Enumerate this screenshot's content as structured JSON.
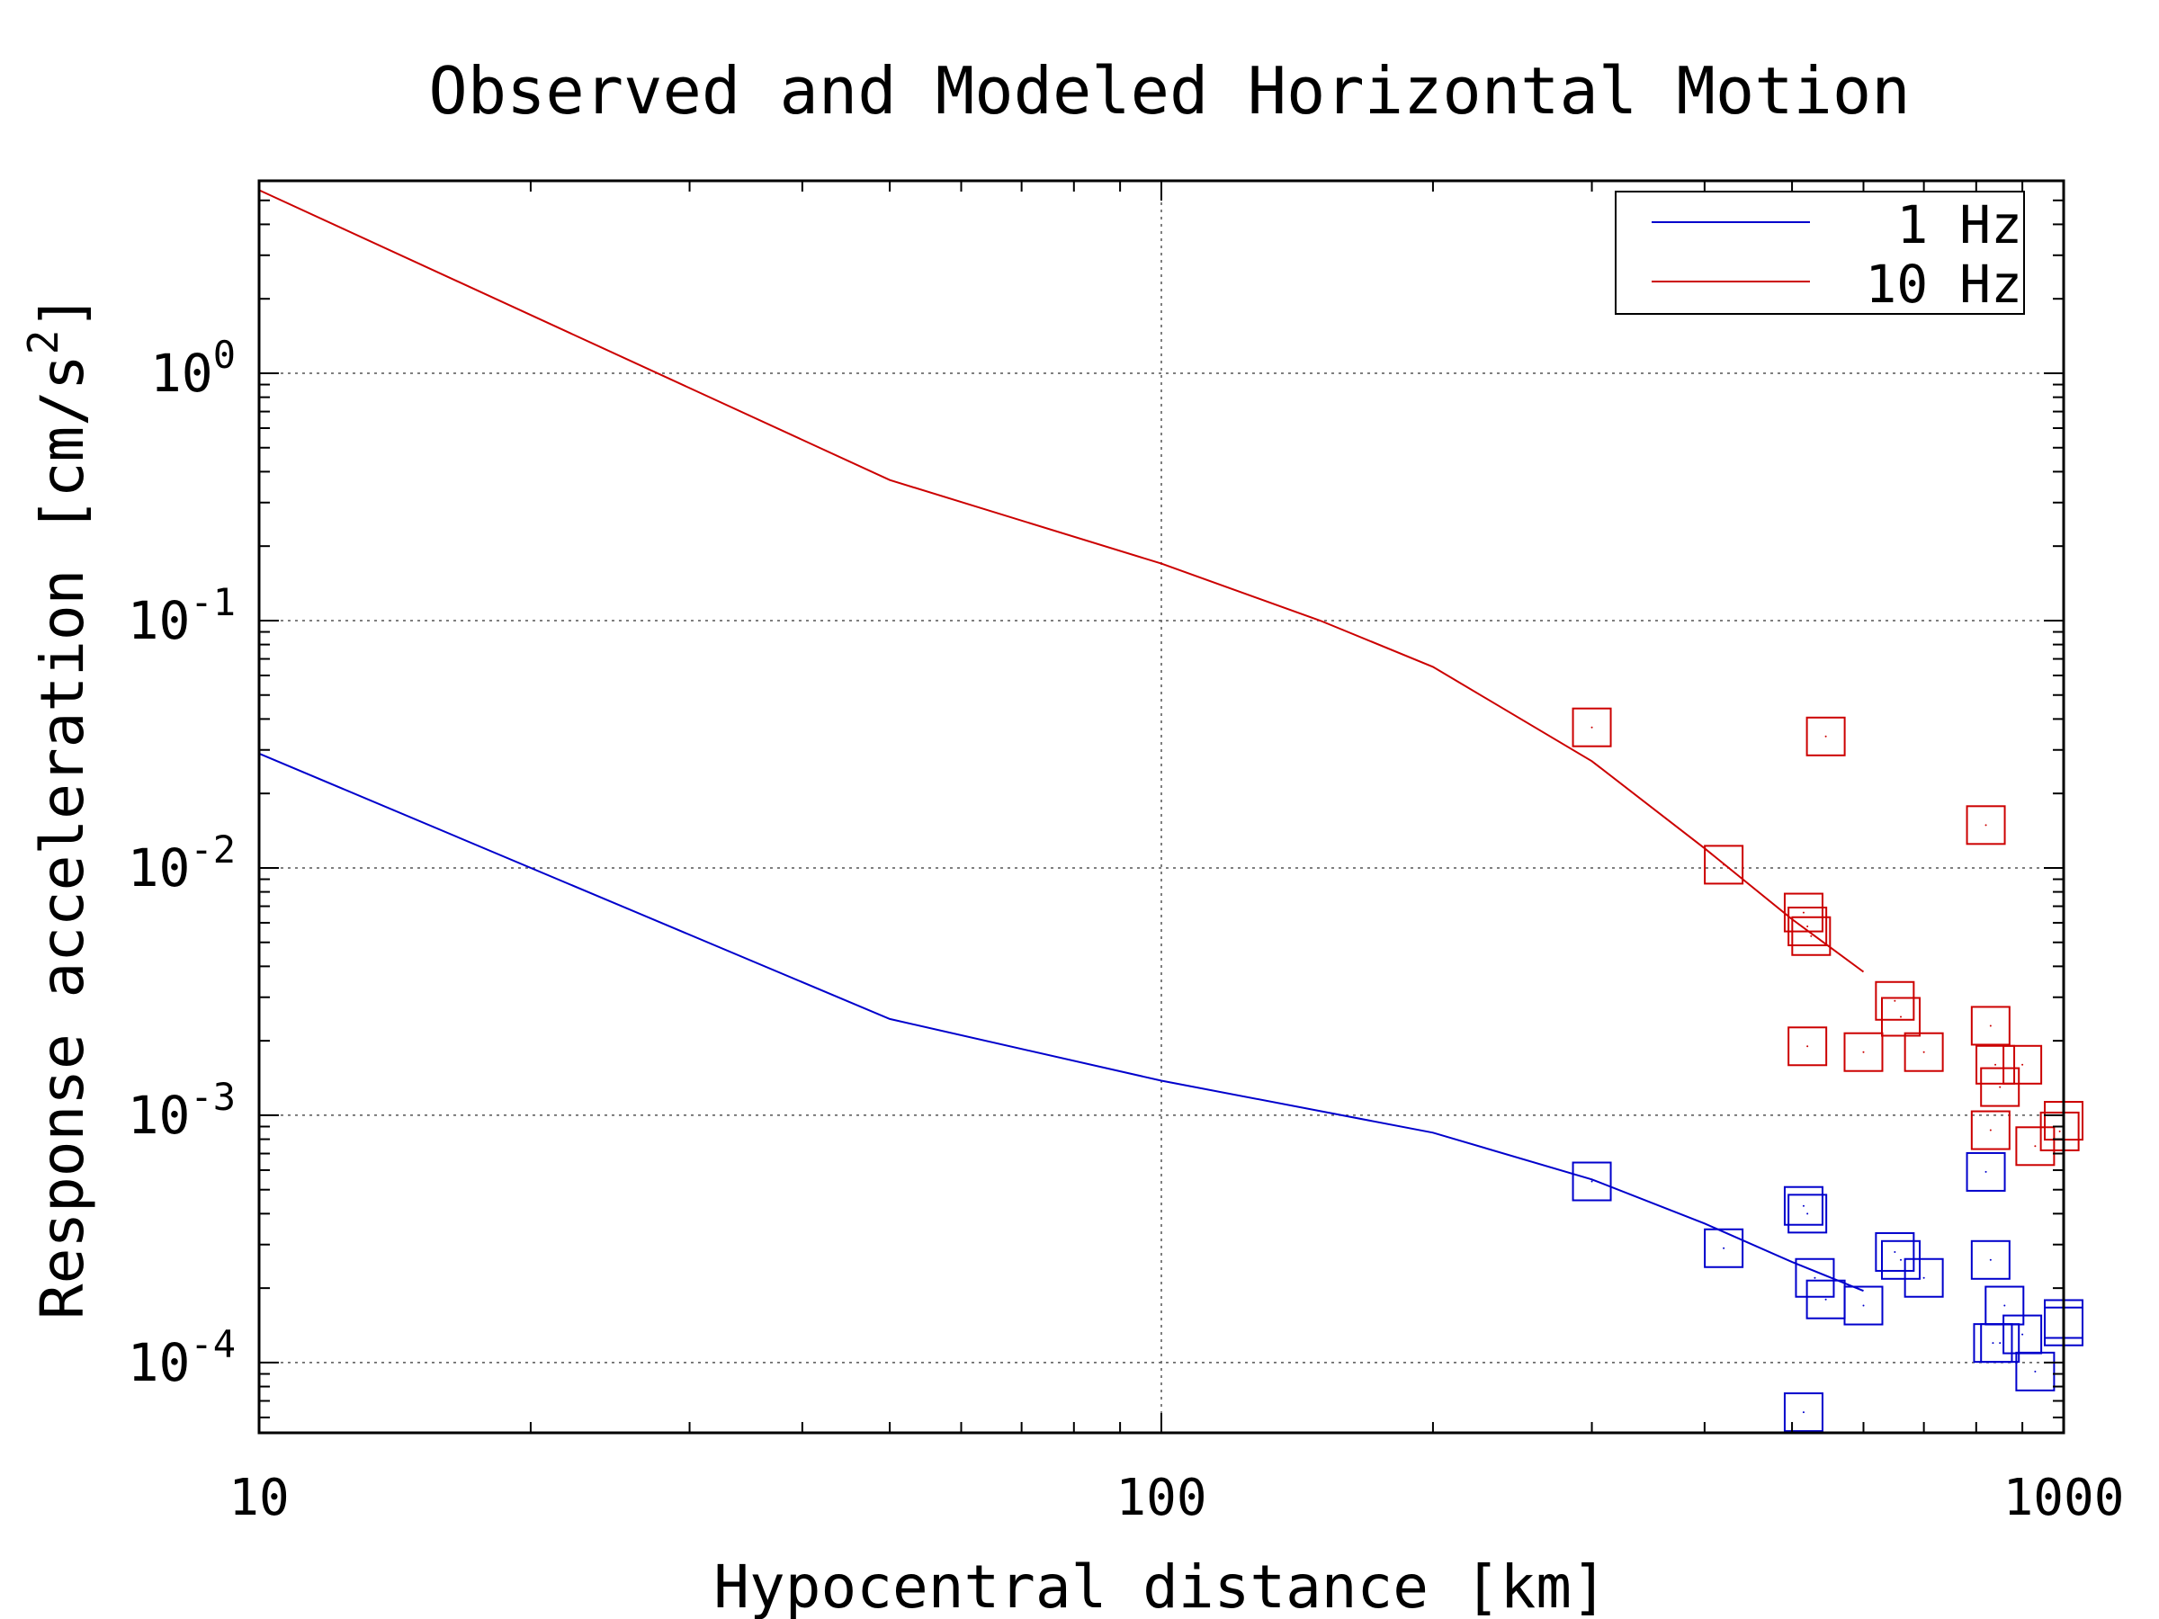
{
  "chart_data": {
    "type": "scatter",
    "title": "Observed and Modeled Horizontal Motion",
    "xlabel": "Hypocentral distance [km]",
    "ylabel_main": "Response acceleration [cm/s",
    "ylabel_sup": "2",
    "ylabel_close": "]",
    "xscale": "log",
    "yscale": "log",
    "xlim": [
      10,
      1000
    ],
    "ylim": [
      5.2e-05,
      6.0
    ],
    "grid": true,
    "legend_position": "top-right",
    "x_ticks": [
      {
        "value": 10,
        "label": "10"
      },
      {
        "value": 100,
        "label": "100"
      },
      {
        "value": 1000,
        "label": "1000"
      }
    ],
    "y_ticks": [
      {
        "value": 1,
        "base": "10",
        "exp": "0"
      },
      {
        "value": 0.1,
        "base": "10",
        "exp": "-1"
      },
      {
        "value": 0.01,
        "base": "10",
        "exp": "-2"
      },
      {
        "value": 0.001,
        "base": "10",
        "exp": "-3"
      },
      {
        "value": 0.0001,
        "base": "10",
        "exp": "-4"
      }
    ],
    "series": [
      {
        "name": "1 Hz",
        "color": "#0000cc",
        "model": {
          "x": [
            10,
            50,
            100,
            200,
            300,
            400,
            500,
            600
          ],
          "y": [
            0.029,
            0.00245,
            0.00138,
            0.00085,
            0.00055,
            0.000365,
            0.000255,
            0.000195
          ]
        },
        "observed": {
          "x": [
            300,
            420,
            515,
            520,
            530,
            545,
            600,
            650,
            660,
            700,
            820,
            830,
            835,
            850,
            860,
            900,
            930,
            1000,
            1000,
            515
          ],
          "y": [
            0.00054,
            0.00029,
            0.00043,
            0.0004,
            0.00022,
            0.00018,
            0.00017,
            0.00028,
            0.00026,
            0.00022,
            0.00059,
            0.00026,
            0.00012,
            0.00012,
            0.00017,
            0.00013,
            9.2e-05,
            0.00015,
            0.00014,
            6.3e-05
          ]
        }
      },
      {
        "name": "10 Hz",
        "color": "#cc0000",
        "model": {
          "x": [
            10,
            50,
            100,
            150,
            200,
            300,
            400,
            500,
            600
          ],
          "y": [
            5.5,
            0.37,
            0.17,
            0.1,
            0.065,
            0.027,
            0.012,
            0.0062,
            0.0038
          ]
        },
        "observed": {
          "x": [
            300,
            545,
            420,
            515,
            520,
            525,
            520,
            600,
            650,
            660,
            700,
            820,
            830,
            840,
            850,
            900,
            830,
            930,
            1000,
            990
          ],
          "y": [
            0.037,
            0.034,
            0.0103,
            0.0066,
            0.0058,
            0.0053,
            0.0019,
            0.0018,
            0.0029,
            0.0025,
            0.0018,
            0.0149,
            0.0023,
            0.0016,
            0.0013,
            0.0016,
            0.00087,
            0.00075,
            0.00095,
            0.00086
          ]
        }
      }
    ]
  }
}
